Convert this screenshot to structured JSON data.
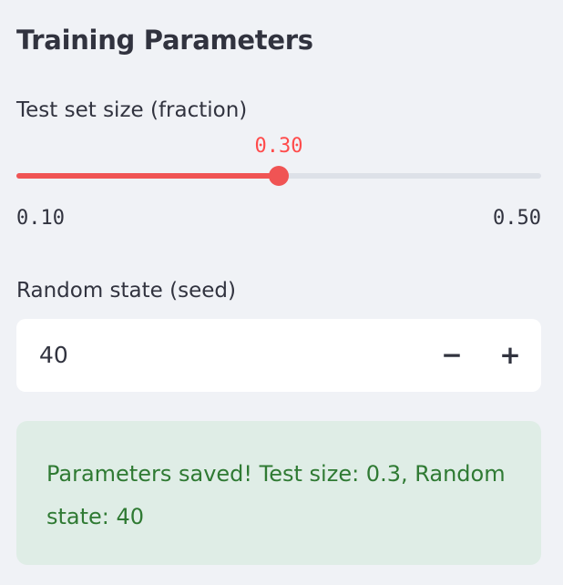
{
  "section": {
    "title": "Training Parameters"
  },
  "test_size_slider": {
    "label": "Test set size (fraction)",
    "value": 0.3,
    "value_label": "0.30",
    "min": 0.1,
    "max": 0.5,
    "min_label": "0.10",
    "max_label": "0.50"
  },
  "random_state": {
    "label": "Random state (seed)",
    "value": "40",
    "decrement_label": "−",
    "increment_label": "+"
  },
  "alert": {
    "message": "Parameters saved! Test size: 0.3, Random state: 40"
  },
  "colors": {
    "accent": "#ff4b4b",
    "track": "#dde1e8",
    "background": "#f0f2f6",
    "success_bg": "#dfede6",
    "success_text": "#2f7a33"
  }
}
